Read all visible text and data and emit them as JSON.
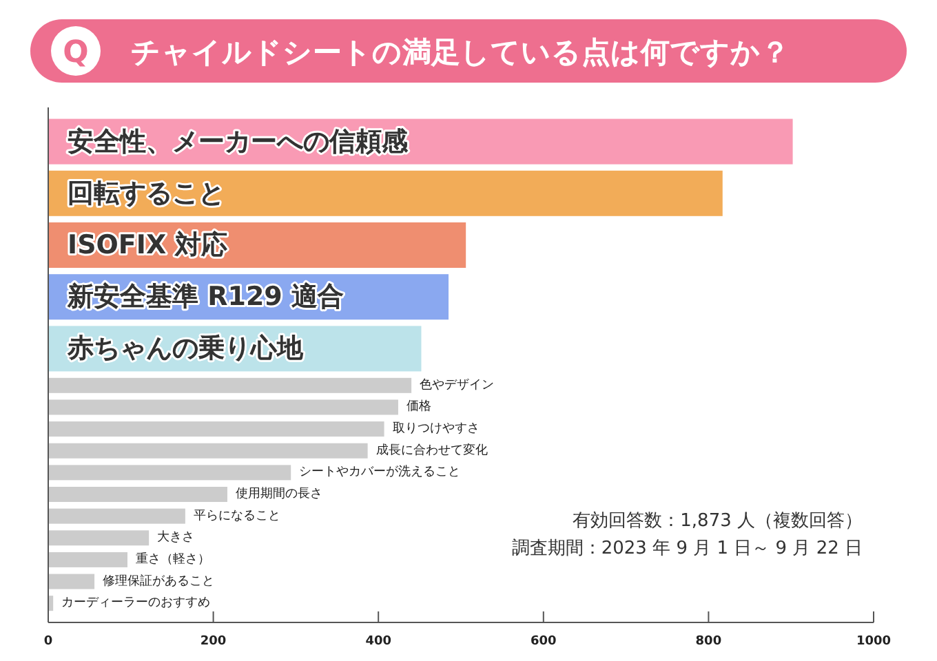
{
  "chart_data": [
    {
      "type": "bar",
      "orientation": "horizontal",
      "title": "チャイルドシートの満足している点は何ですか？",
      "categories": [
        "安全性、メーカーへの信頼感",
        "回転すること",
        "ISOFIX 対応",
        "新安全基準 R129 適合",
        "赤ちゃんの乗り心地"
      ],
      "values": [
        902,
        817,
        506,
        485,
        452
      ],
      "colors": [
        "#f99ab4",
        "#f2ac58",
        "#ef8e70",
        "#8aa8f0",
        "#bce3ea"
      ],
      "xlim": [
        0,
        1000
      ],
      "tick_labels": "y",
      "annotations": [
        "Q"
      ]
    },
    {
      "type": "bar",
      "orientation": "horizontal",
      "categories": [
        "色やデザイン",
        "価格",
        "取りつけやすさ",
        "成長に合わせて変化",
        "シートやカバーが洗えること",
        "使用期間の長さ",
        "平らになること",
        "大きさ",
        "重さ（軽さ）",
        "修理保証があること",
        "カーディーラーのおすすめ"
      ],
      "values": [
        440,
        424,
        407,
        387,
        294,
        217,
        166,
        122,
        96,
        56,
        6
      ],
      "color": "#cccccc",
      "xlim": [
        0,
        1000
      ],
      "xticks": [
        0,
        200,
        400,
        600,
        800,
        1000
      ],
      "annotations": [
        "有効回答数：1,873 人（複数回答）",
        "調査期間：2023 年 9 月 1 日～ 9 月 22 日"
      ]
    }
  ]
}
